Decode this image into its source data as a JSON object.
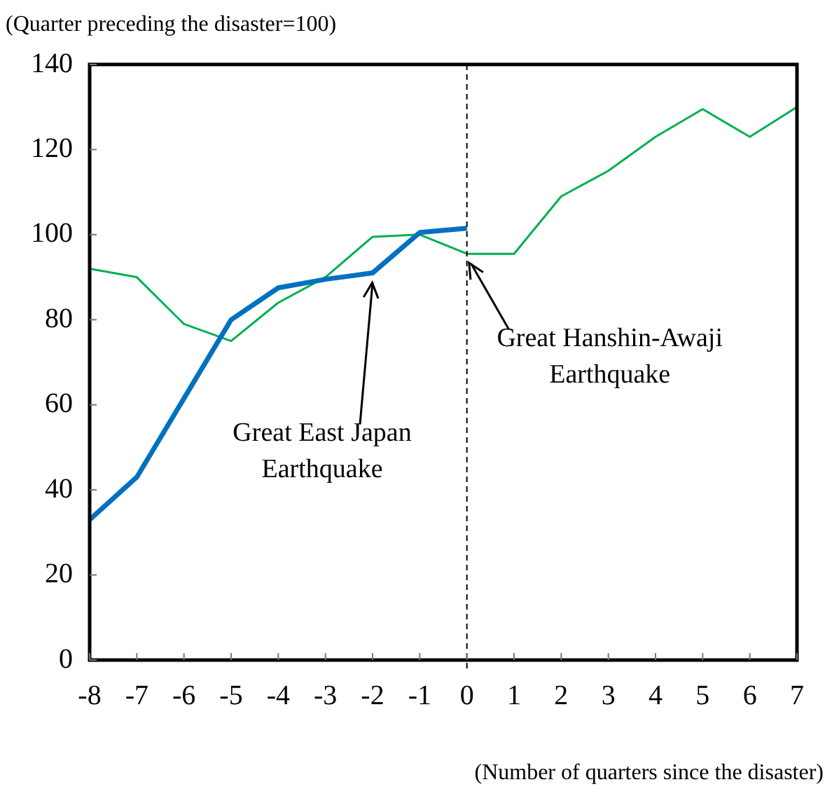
{
  "chart_data": {
    "type": "line",
    "ylabel": "(Quarter preceding the disaster=100)",
    "xlabel": "(Number of quarters since the disaster)",
    "x": [
      -8,
      -7,
      -6,
      -5,
      -4,
      -3,
      -2,
      -1,
      0,
      1,
      2,
      3,
      4,
      5,
      6,
      7
    ],
    "series": [
      {
        "color": "#0070c0",
        "values": [
          33,
          43,
          61.5,
          80,
          87.5,
          89.5,
          91,
          100.5,
          101.5,
          null,
          null,
          null,
          null,
          null,
          null,
          null
        ]
      },
      {
        "color": "#00b050",
        "values": [
          92,
          90,
          79,
          75,
          84,
          90,
          99.5,
          100,
          95.5,
          95.5,
          109,
          115,
          123,
          129.5,
          123,
          130
        ]
      }
    ],
    "xlim": [
      -8,
      7
    ],
    "xticks": [
      -8,
      -7,
      -6,
      -5,
      -4,
      -3,
      -2,
      -1,
      0,
      1,
      2,
      3,
      4,
      5,
      6,
      7
    ],
    "ylim": [
      0,
      140
    ],
    "yticks": [
      0,
      20,
      40,
      60,
      80,
      100,
      120,
      140
    ],
    "grid": false,
    "legend": false,
    "marker": "none",
    "ref_lines": [
      {
        "axis": "x",
        "value": 0,
        "color": "#000000",
        "line_style": "dashed"
      }
    ],
    "annotations": [
      {
        "text": "Great East Japan Earthquake",
        "x": -2,
        "y": 91
      },
      {
        "text": "Great Hanshin-Awaji Earthquake",
        "x": 0,
        "y": 95.5
      }
    ]
  }
}
